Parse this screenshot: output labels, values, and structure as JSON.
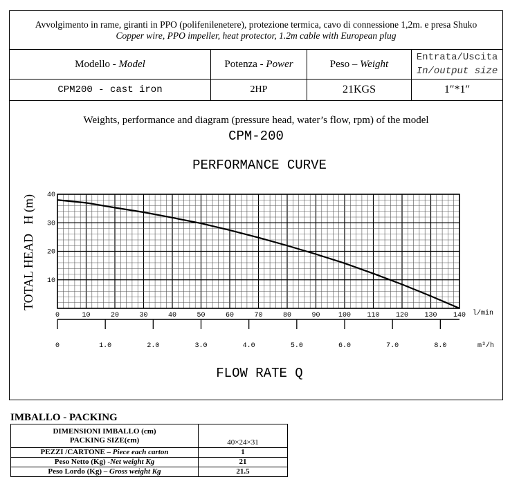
{
  "spec": {
    "desc_it": "Avvolgimento in rame, giranti in PPO  (polifenilenetere), protezione termica, cavo di connessione 1,2m. e presa Shuko",
    "desc_en": "Copper wire, PPO impeller, heat protector, 1.2m cable with European plug",
    "headers": [
      {
        "it": "Modello - ",
        "en": "Model"
      },
      {
        "it": "Potenza - ",
        "en": "Power"
      },
      {
        "it": "Peso – ",
        "en": "Weight"
      },
      {
        "it": "Entrata/Uscita",
        "en": "In/output size"
      }
    ],
    "row": {
      "model": "CPM200  -  cast iron",
      "power": "2HP",
      "weight": "21KGS",
      "size": "1″*1″"
    }
  },
  "chart_data": {
    "type": "line",
    "caption": "Weights, performance and diagram (pressure head, water’s flow, rpm) of the model",
    "model": "CPM-200",
    "title": "PERFORMANCE CURVE",
    "xlabel": "FLOW RATE Q",
    "ylabel": "TOTAL HEAD   H (m)",
    "x_unit": "l/min",
    "x2_unit": "m³/h",
    "xlim": [
      0,
      140
    ],
    "ylim": [
      0,
      40
    ],
    "x_ticks": [
      "0",
      "10",
      "20",
      "30",
      "40",
      "50",
      "60",
      "70",
      "80",
      "90",
      "100",
      "110",
      "120",
      "130",
      "140"
    ],
    "y_ticks": [
      "10",
      "20",
      "30",
      "40"
    ],
    "x2_ticks": [
      "0",
      "1.0",
      "2.0",
      "3.0",
      "4.0",
      "5.0",
      "6.0",
      "7.0",
      "8.0"
    ],
    "x2lim": [
      0,
      8.4
    ],
    "grid": true,
    "series": [
      {
        "name": "CPM-200",
        "x": [
          0,
          10,
          20,
          30,
          40,
          50,
          60,
          70,
          80,
          90,
          100,
          110,
          120,
          130,
          140
        ],
        "y": [
          38,
          37,
          35.3,
          33.7,
          31.8,
          29.8,
          27.4,
          24.8,
          22,
          19,
          15.8,
          12.2,
          8.4,
          4.3,
          0
        ]
      }
    ]
  },
  "packing": {
    "title": "IMBALLO - PACKING",
    "rows": [
      {
        "label_it": "DIMENSIONI IMBALLO (cm)",
        "label_en": "PACKING SIZE(cm)",
        "value": "40×24×31"
      },
      {
        "label_it": "PEZZI /CARTONE – ",
        "label_en": "Piece each carton",
        "value": "1"
      },
      {
        "label_it": "Peso Netto (Kg) -",
        "label_en": "Net  weight Kg",
        "value": "21"
      },
      {
        "label_it": "Peso Lordo (Kg) – ",
        "label_en": "Gross weight Kg",
        "value": "21.5"
      }
    ]
  }
}
